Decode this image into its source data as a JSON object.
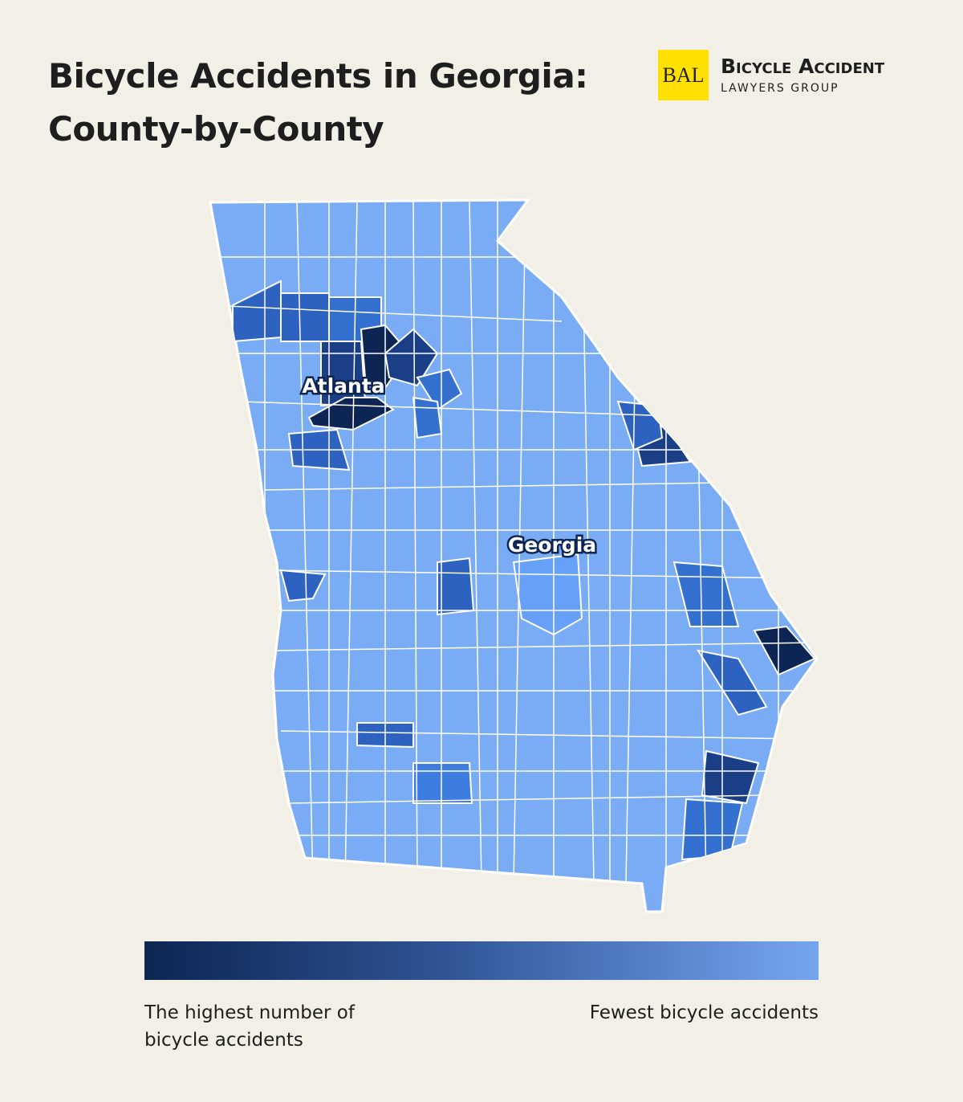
{
  "header": {
    "title_lines": [
      "Bicycle Accidents in Georgia:",
      "County-by-County"
    ]
  },
  "logo": {
    "mark": "BAL",
    "name": "Bicycle Accident",
    "subtitle": "LAWYERS GROUP"
  },
  "map": {
    "labels": [
      "Atlanta",
      "Georgia"
    ]
  },
  "legend": {
    "high": "The highest number of bicycle accidents",
    "low": "Fewest bicycle accidents"
  }
}
